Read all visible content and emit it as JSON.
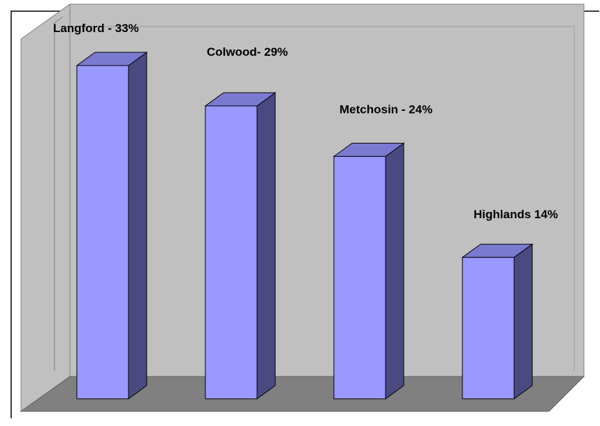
{
  "colors": {
    "bar_front": "#9999ff",
    "bar_side": "#4a4a80",
    "bar_top": "#7a7ad0",
    "back_wall": "#c0c0c0",
    "side_wall": "#c0c0c0",
    "floor": "#808080"
  },
  "chart_data": {
    "type": "bar",
    "categories": [
      "Langford",
      "Colwood",
      "Metchosin",
      "Highlands"
    ],
    "values": [
      33,
      29,
      24,
      14
    ],
    "data_labels": [
      "Langford - 33%",
      "Colwood- 29%",
      "Metchosin - 24%",
      "Highlands 14%"
    ],
    "unit": "%",
    "ylim": [
      0,
      35
    ],
    "grid": false,
    "legend": "none",
    "style": "3d-column"
  }
}
